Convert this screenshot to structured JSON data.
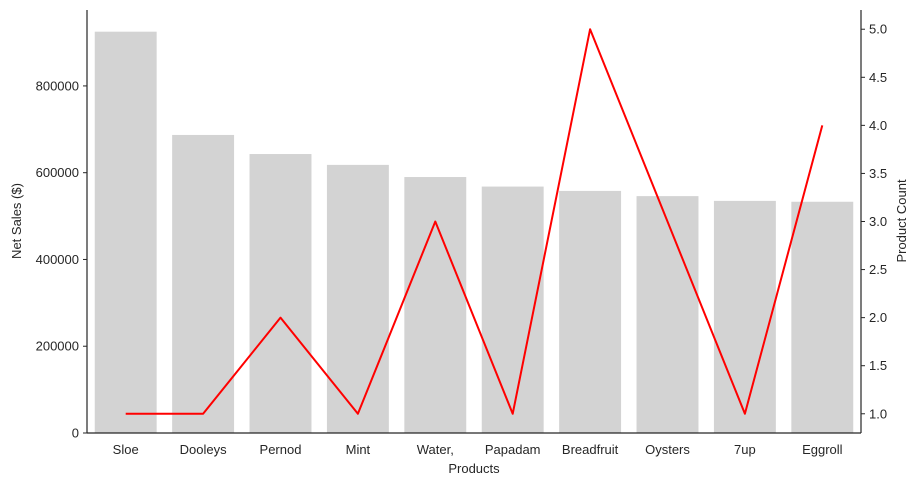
{
  "chart_data": {
    "type": "bar",
    "categories": [
      "Sloe",
      "Dooleys",
      "Pernod",
      "Mint",
      "Water,",
      "Papadam",
      "Breadfruit",
      "Oysters",
      "7up",
      "Eggroll"
    ],
    "series": [
      {
        "type": "bar",
        "axis": "left",
        "color": "#d3d3d3",
        "values": [
          925000,
          687000,
          643000,
          618000,
          590000,
          568000,
          558000,
          546000,
          535000,
          533000
        ]
      },
      {
        "type": "line",
        "axis": "right",
        "color": "#ff0000",
        "values": [
          1,
          1,
          2,
          1,
          3,
          1,
          5,
          3,
          1,
          4
        ]
      }
    ],
    "xlabel": "Products",
    "ylabel": "Net Sales ($)",
    "y2label": "Product Count",
    "ylim": [
      0,
      975000
    ],
    "y2lim": [
      0.8,
      5.2
    ],
    "yticks": [
      "0",
      "200000",
      "400000",
      "600000",
      "800000"
    ],
    "y2ticks": [
      "1.0",
      "1.5",
      "2.0",
      "2.5",
      "3.0",
      "3.5",
      "4.0",
      "4.5",
      "5.0"
    ],
    "grid": false,
    "legend": false
  }
}
